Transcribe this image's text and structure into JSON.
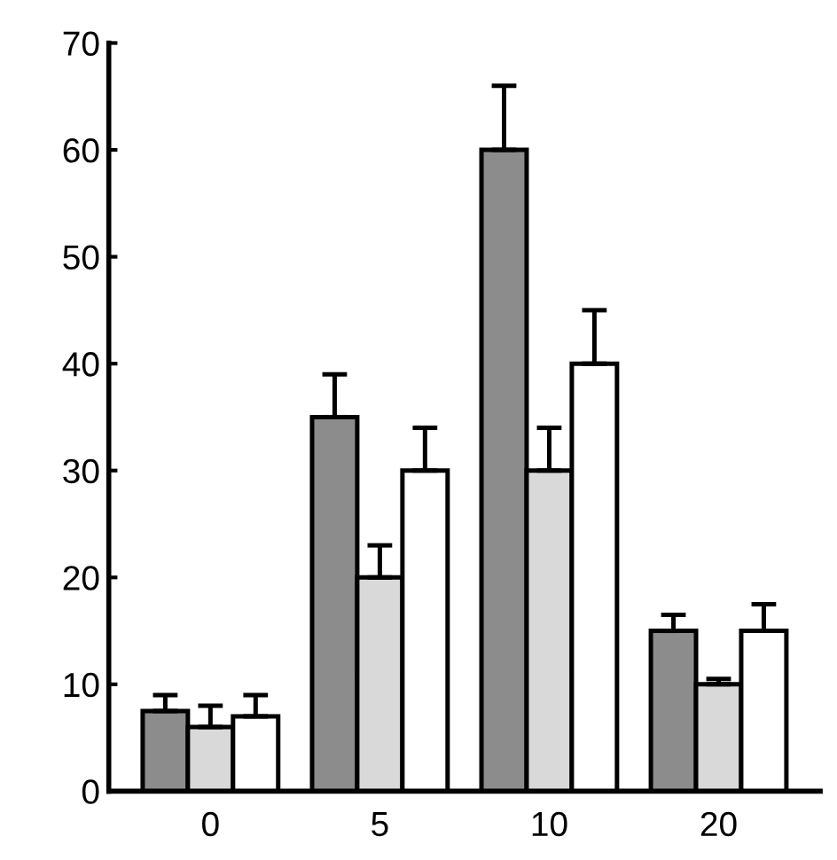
{
  "chart_data": {
    "type": "bar",
    "categories": [
      "0",
      "5",
      "10",
      "20"
    ],
    "series": [
      {
        "color": "#8c8c8c",
        "values": [
          7.5,
          35,
          60,
          15
        ],
        "errors": [
          [
            7.5,
            9
          ],
          [
            35,
            39
          ],
          [
            60,
            66
          ],
          [
            15,
            16.5
          ]
        ]
      },
      {
        "color": "#d9d9d9",
        "values": [
          6,
          20,
          30,
          10
        ],
        "errors": [
          [
            6,
            8
          ],
          [
            20,
            23
          ],
          [
            30,
            34
          ],
          [
            10,
            10.5
          ]
        ]
      },
      {
        "color": "#ffffff",
        "values": [
          7,
          30,
          40,
          15
        ],
        "errors": [
          [
            7,
            9
          ],
          [
            30,
            34
          ],
          [
            40,
            45
          ],
          [
            15,
            17.5
          ]
        ]
      }
    ],
    "ylim": [
      0,
      70
    ],
    "yticks": [
      0,
      10,
      20,
      30,
      40,
      50,
      60,
      70
    ],
    "grid": false,
    "legend": false
  }
}
